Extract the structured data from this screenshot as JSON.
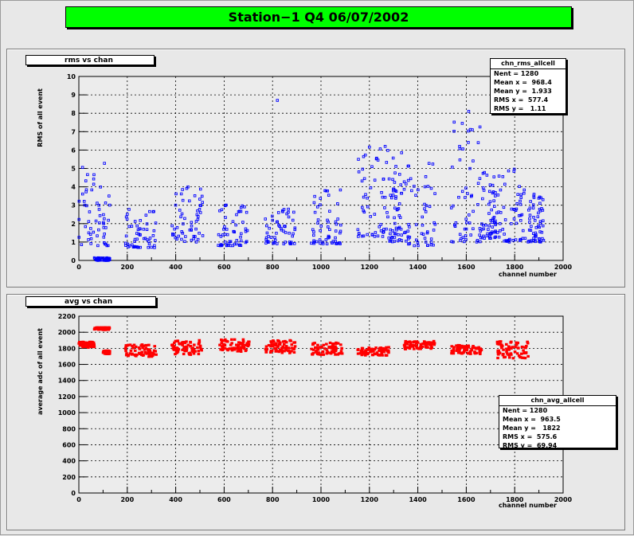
{
  "page_title": "Station−1 Q4 06/07/2002",
  "chart_data": [
    {
      "type": "scatter",
      "pad_title": "rms vs chan",
      "xlabel": "channel number",
      "ylabel": "RMS of all event",
      "xlim": [
        0,
        2000
      ],
      "ylim": [
        0,
        10
      ],
      "x_ticks": [
        "0",
        "200",
        "400",
        "600",
        "800",
        "1000",
        "1200",
        "1400",
        "1600",
        "1800",
        "2000"
      ],
      "y_ticks": [
        "0",
        "1",
        "2",
        "3",
        "4",
        "5",
        "6",
        "7",
        "8",
        "9",
        "10"
      ],
      "grid": true,
      "marker_color": "#0000ff",
      "stats": {
        "name": "chn_rms_allcell",
        "rows": [
          "Nent = 1280",
          "Mean x =  968.4",
          "Mean y =  1.933",
          "RMS x =  577.4",
          "RMS y =   1.11"
        ]
      },
      "clusters": [
        {
          "x0": 0,
          "x1": 128,
          "ymin": 0.8,
          "ymax": 5.3
        },
        {
          "x0": 64,
          "x1": 128,
          "ymin": 0.0,
          "ymax": 0.15
        },
        {
          "x0": 192,
          "x1": 320,
          "ymin": 0.7,
          "ymax": 2.8
        },
        {
          "x0": 384,
          "x1": 512,
          "ymin": 1.0,
          "ymax": 4.1
        },
        {
          "x0": 576,
          "x1": 704,
          "ymin": 0.8,
          "ymax": 3.1
        },
        {
          "x0": 768,
          "x1": 896,
          "ymin": 0.9,
          "ymax": 2.9
        },
        {
          "x0": 960,
          "x1": 1088,
          "ymin": 0.9,
          "ymax": 4.0
        },
        {
          "x0": 1152,
          "x1": 1280,
          "ymin": 1.3,
          "ymax": 6.2
        },
        {
          "x0": 1280,
          "x1": 1344,
          "ymin": 1.0,
          "ymax": 5.9
        },
        {
          "x0": 1344,
          "x1": 1472,
          "ymin": 0.8,
          "ymax": 5.4
        },
        {
          "x0": 1536,
          "x1": 1664,
          "ymin": 1.0,
          "ymax": 8.1
        },
        {
          "x0": 1664,
          "x1": 1728,
          "ymin": 1.2,
          "ymax": 4.8
        },
        {
          "x0": 1728,
          "x1": 1856,
          "ymin": 1.0,
          "ymax": 5.0
        },
        {
          "x0": 1856,
          "x1": 1920,
          "ymin": 1.0,
          "ymax": 3.6
        }
      ],
      "outliers": [
        [
          820,
          8.7
        ],
        [
          1610,
          8.1
        ],
        [
          1625,
          7.1
        ],
        [
          1265,
          6.2
        ]
      ]
    },
    {
      "type": "scatter",
      "pad_title": "avg vs chan",
      "xlabel": "channel number",
      "ylabel": "average adc of all event",
      "xlim": [
        0,
        2000
      ],
      "ylim": [
        0,
        2200
      ],
      "x_ticks": [
        "0",
        "200",
        "400",
        "600",
        "800",
        "1000",
        "1200",
        "1400",
        "1600",
        "1800",
        "2000"
      ],
      "y_ticks": [
        "0",
        "200",
        "400",
        "600",
        "800",
        "1000",
        "1200",
        "1400",
        "1600",
        "1800",
        "2000",
        "2200"
      ],
      "grid": true,
      "marker_color": "#ff0000",
      "stats": {
        "name": "chn_avg_allcell",
        "rows": [
          "Nent = 1280",
          "Mean x =  963.5",
          "Mean y =   1822",
          "RMS x =  575.6",
          "RMS y =  69.94"
        ]
      },
      "clusters": [
        {
          "x0": 0,
          "x1": 64,
          "ymin": 1810,
          "ymax": 1880
        },
        {
          "x0": 64,
          "x1": 128,
          "ymin": 2030,
          "ymax": 2060
        },
        {
          "x0": 100,
          "x1": 128,
          "ymin": 1730,
          "ymax": 1770
        },
        {
          "x0": 192,
          "x1": 320,
          "ymin": 1690,
          "ymax": 1850
        },
        {
          "x0": 384,
          "x1": 512,
          "ymin": 1720,
          "ymax": 1900
        },
        {
          "x0": 576,
          "x1": 704,
          "ymin": 1760,
          "ymax": 1910
        },
        {
          "x0": 768,
          "x1": 896,
          "ymin": 1740,
          "ymax": 1900
        },
        {
          "x0": 960,
          "x1": 1088,
          "ymin": 1720,
          "ymax": 1870
        },
        {
          "x0": 1152,
          "x1": 1280,
          "ymin": 1710,
          "ymax": 1820
        },
        {
          "x0": 1344,
          "x1": 1472,
          "ymin": 1790,
          "ymax": 1890
        },
        {
          "x0": 1536,
          "x1": 1664,
          "ymin": 1730,
          "ymax": 1840
        },
        {
          "x0": 1728,
          "x1": 1856,
          "ymin": 1670,
          "ymax": 1890
        }
      ],
      "outliers": []
    }
  ]
}
